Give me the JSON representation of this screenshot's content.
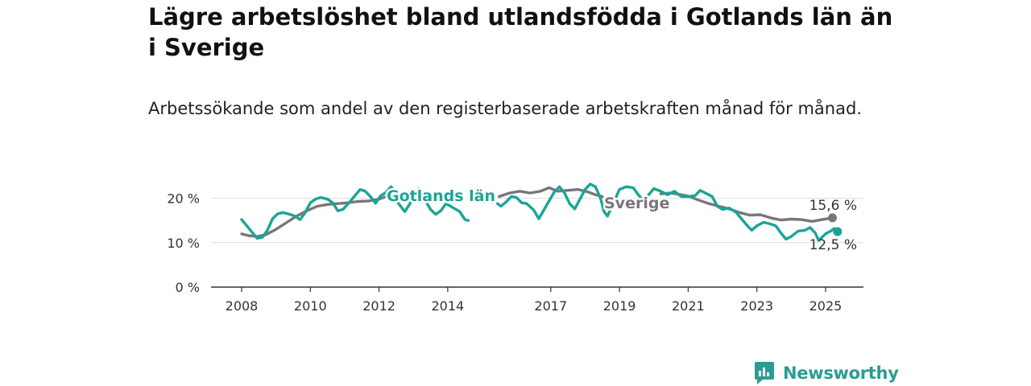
{
  "title": "Lägre arbetslöshet bland utlandsfödda i Gotlands län än i Sverige",
  "subtitle": "Arbetssökande som andel av den registerbaserade arbetskraften månad för månad.",
  "brand": "Newsworthy",
  "colors": {
    "gotland": "#1aa596",
    "sverige": "#7a7579",
    "grid": "#dddddd",
    "axis": "#333333",
    "brand": "#2b9c92"
  },
  "chart_data": {
    "type": "line",
    "title": "Lägre arbetslöshet bland utlandsfödda i Gotlands län än i Sverige",
    "subtitle": "Arbetssökande som andel av den registerbaserade arbetskraften månad för månad.",
    "ylim": [
      0,
      25
    ],
    "xlim": [
      2008,
      2026
    ],
    "grid": true,
    "y_ticks": [
      0,
      10,
      20
    ],
    "y_tick_labels": [
      "0 %",
      "10 %",
      "20 %"
    ],
    "x_ticks": [
      2008,
      2010,
      2012,
      2014,
      2017,
      2019,
      2021,
      2023,
      2025
    ],
    "x_tick_labels": [
      "2008",
      "2010",
      "2012",
      "2014",
      "2017",
      "2019",
      "2021",
      "2023",
      "2025"
    ],
    "series": [
      {
        "name": "Sverige",
        "end_label": "15,6 %",
        "points": [
          [
            2008.0,
            12.0
          ],
          [
            2008.2,
            11.6
          ],
          [
            2008.45,
            11.4
          ],
          [
            2008.7,
            11.8
          ],
          [
            2009.0,
            13.0
          ],
          [
            2009.3,
            14.5
          ],
          [
            2009.6,
            16.0
          ],
          [
            2009.9,
            17.2
          ],
          [
            2010.2,
            18.2
          ],
          [
            2010.5,
            18.6
          ],
          [
            2010.8,
            18.8
          ],
          [
            2011.1,
            19.0
          ],
          [
            2011.4,
            19.3
          ],
          [
            2011.7,
            19.4
          ],
          [
            2012.0,
            19.8
          ],
          [
            2012.2,
            20.4
          ],
          [
            2012.35,
            20.2
          ],
          [
            2015.5,
            20.4
          ],
          [
            2015.8,
            21.2
          ],
          [
            2016.1,
            21.6
          ],
          [
            2016.4,
            21.2
          ],
          [
            2016.7,
            21.6
          ],
          [
            2016.95,
            22.4
          ],
          [
            2017.2,
            21.6
          ],
          [
            2017.5,
            21.8
          ],
          [
            2017.8,
            22.0
          ],
          [
            2018.1,
            21.4
          ],
          [
            2018.3,
            20.8
          ],
          [
            2018.5,
            20.4
          ],
          [
            2020.2,
            21.0
          ],
          [
            2020.5,
            21.2
          ],
          [
            2020.8,
            20.8
          ],
          [
            2021.0,
            20.5
          ],
          [
            2021.3,
            19.6
          ],
          [
            2021.6,
            18.8
          ],
          [
            2021.9,
            18.2
          ],
          [
            2022.2,
            17.6
          ],
          [
            2022.5,
            16.8
          ],
          [
            2022.8,
            16.2
          ],
          [
            2023.1,
            16.3
          ],
          [
            2023.4,
            15.6
          ],
          [
            2023.7,
            15.1
          ],
          [
            2024.0,
            15.3
          ],
          [
            2024.3,
            15.2
          ],
          [
            2024.6,
            14.8
          ],
          [
            2024.9,
            15.2
          ],
          [
            2025.2,
            15.6
          ]
        ]
      },
      {
        "name": "Gotlands län",
        "end_label": "12,5 %",
        "points": [
          [
            2008.0,
            15.2
          ],
          [
            2008.15,
            13.8
          ],
          [
            2008.3,
            12.4
          ],
          [
            2008.45,
            11.0
          ],
          [
            2008.6,
            11.2
          ],
          [
            2008.75,
            12.8
          ],
          [
            2008.9,
            15.4
          ],
          [
            2009.05,
            16.5
          ],
          [
            2009.2,
            16.8
          ],
          [
            2009.4,
            16.4
          ],
          [
            2009.55,
            16.0
          ],
          [
            2009.7,
            15.2
          ],
          [
            2009.85,
            16.8
          ],
          [
            2010.0,
            19.0
          ],
          [
            2010.15,
            19.8
          ],
          [
            2010.3,
            20.2
          ],
          [
            2010.5,
            19.8
          ],
          [
            2010.65,
            19.0
          ],
          [
            2010.8,
            17.2
          ],
          [
            2010.95,
            17.5
          ],
          [
            2011.15,
            19.2
          ],
          [
            2011.3,
            20.6
          ],
          [
            2011.45,
            22.0
          ],
          [
            2011.6,
            21.6
          ],
          [
            2011.75,
            20.4
          ],
          [
            2011.9,
            18.9
          ],
          [
            2012.05,
            20.6
          ],
          [
            2012.2,
            21.3
          ],
          [
            2012.35,
            22.6
          ],
          [
            2012.5,
            21.2
          ],
          [
            2012.55,
            19.0
          ],
          [
            2012.75,
            17.0
          ],
          [
            2012.9,
            18.8
          ],
          [
            2013.05,
            21.0
          ],
          [
            2013.15,
            22.2
          ],
          [
            2013.35,
            19.5
          ],
          [
            2013.5,
            17.5
          ],
          [
            2013.65,
            16.4
          ],
          [
            2013.8,
            17.2
          ],
          [
            2013.95,
            18.8
          ],
          [
            2014.35,
            17.0
          ],
          [
            2014.5,
            15.2
          ],
          [
            2014.6,
            15.0
          ],
          [
            2015.45,
            18.8
          ],
          [
            2015.55,
            18.2
          ],
          [
            2015.7,
            19.2
          ],
          [
            2015.85,
            20.4
          ],
          [
            2016.0,
            20.2
          ],
          [
            2016.15,
            19.0
          ],
          [
            2016.3,
            18.8
          ],
          [
            2016.5,
            17.4
          ],
          [
            2016.65,
            15.4
          ],
          [
            2016.8,
            17.4
          ],
          [
            2016.95,
            19.4
          ],
          [
            2017.1,
            21.4
          ],
          [
            2017.25,
            22.6
          ],
          [
            2017.4,
            21.2
          ],
          [
            2017.55,
            18.8
          ],
          [
            2017.7,
            17.6
          ],
          [
            2017.85,
            19.8
          ],
          [
            2018.0,
            22.0
          ],
          [
            2018.15,
            23.2
          ],
          [
            2018.3,
            22.6
          ],
          [
            2018.45,
            20.0
          ],
          [
            2018.55,
            17.0
          ],
          [
            2018.65,
            16.0
          ],
          [
            2019.0,
            22.0
          ],
          [
            2019.2,
            22.6
          ],
          [
            2019.4,
            22.4
          ],
          [
            2019.55,
            20.8
          ],
          [
            2019.7,
            19.4
          ],
          [
            2020.0,
            22.2
          ],
          [
            2020.2,
            21.6
          ],
          [
            2020.4,
            20.8
          ],
          [
            2020.6,
            21.6
          ],
          [
            2020.8,
            20.4
          ],
          [
            2021.0,
            20.4
          ],
          [
            2021.2,
            20.6
          ],
          [
            2021.35,
            21.8
          ],
          [
            2021.55,
            21.0
          ],
          [
            2021.7,
            20.4
          ],
          [
            2021.85,
            18.2
          ],
          [
            2022.0,
            17.5
          ],
          [
            2022.2,
            17.8
          ],
          [
            2022.4,
            16.8
          ],
          [
            2022.55,
            15.4
          ],
          [
            2022.7,
            14.0
          ],
          [
            2022.85,
            12.8
          ],
          [
            2023.0,
            13.8
          ],
          [
            2023.2,
            14.6
          ],
          [
            2023.4,
            14.2
          ],
          [
            2023.55,
            13.8
          ],
          [
            2023.7,
            12.2
          ],
          [
            2023.85,
            10.8
          ],
          [
            2024.0,
            11.4
          ],
          [
            2024.2,
            12.6
          ],
          [
            2024.4,
            12.8
          ],
          [
            2024.55,
            13.4
          ],
          [
            2024.7,
            12.2
          ],
          [
            2024.8,
            10.5
          ],
          [
            2025.0,
            12.0
          ],
          [
            2025.15,
            12.6
          ],
          [
            2025.25,
            13.2
          ],
          [
            2025.35,
            12.5
          ]
        ]
      }
    ]
  }
}
